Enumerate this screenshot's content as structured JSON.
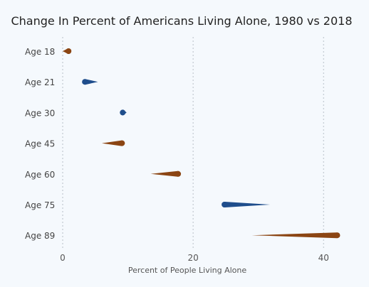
{
  "chart_data": {
    "type": "dumbbell",
    "title": "Change In Percent of Americans Living Alone, 1980 vs 2018",
    "xlabel": "Percent of People Living Alone",
    "ylabel": "",
    "xlim": [
      0,
      45
    ],
    "xticks": [
      0,
      20,
      40
    ],
    "grid": true,
    "categories": [
      "Age 18",
      "Age 21",
      "Age 30",
      "Age 45",
      "Age 60",
      "Age 75",
      "Age 89"
    ],
    "series": [
      {
        "values": [
          0.0,
          5.4,
          9.8,
          6.0,
          13.5,
          31.8,
          29.0
        ]
      },
      {
        "values": [
          0.9,
          3.4,
          9.2,
          9.1,
          17.7,
          24.8,
          42.1
        ]
      }
    ],
    "colors": {
      "increase": "#8b4513",
      "decrease": "#1f4e8c"
    }
  }
}
